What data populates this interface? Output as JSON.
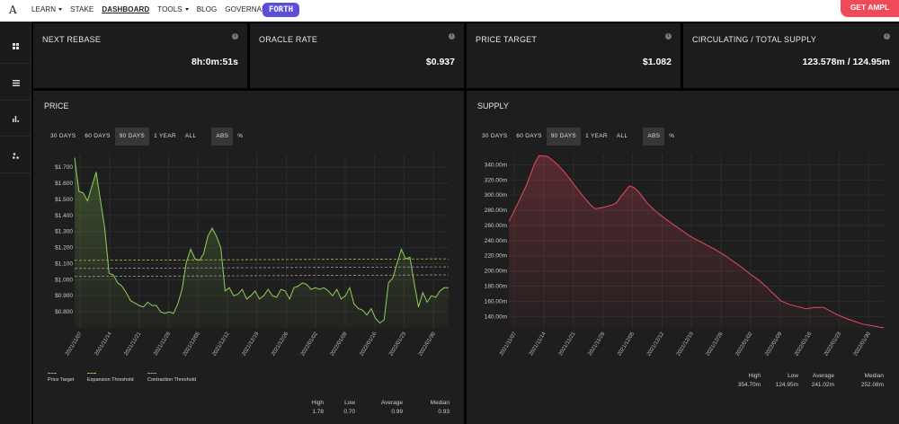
{
  "app": {
    "logo": "A",
    "nav": [
      {
        "label": "LEARN",
        "dropdown": true,
        "active": false
      },
      {
        "label": "STAKE",
        "dropdown": false,
        "active": false
      },
      {
        "label": "DASHBOARD",
        "dropdown": false,
        "active": true
      },
      {
        "label": "TOOLS",
        "dropdown": true,
        "active": false
      },
      {
        "label": "BLOG",
        "dropdown": false,
        "active": false
      },
      {
        "label": "GOVERNANCE",
        "dropdown": true,
        "active": false
      }
    ],
    "forth_label": "FORTH",
    "cta_label": "GET AMPL"
  },
  "sidebar": {
    "icons": [
      "grid-icon",
      "list-icon",
      "bar-chart-icon",
      "nodes-icon"
    ]
  },
  "cards": [
    {
      "label": "NEXT REBASE",
      "value": "8h:0m:51s"
    },
    {
      "label": "ORACLE RATE",
      "value": "$0.937"
    },
    {
      "label": "PRICE TARGET",
      "value": "$1.082"
    },
    {
      "label": "CIRCULATING / TOTAL SUPPLY",
      "value": "123.578m / 124.95m"
    }
  ],
  "info_glyph": "i",
  "price_panel": {
    "title": "PRICE",
    "range_tabs": [
      "30 DAYS",
      "60 DAYS",
      "90 DAYS",
      "1 YEAR",
      "ALL"
    ],
    "selected_range": "90 DAYS",
    "mode_tabs": [
      "ABS",
      "%"
    ],
    "selected_mode": "ABS",
    "legend": [
      "Price Target",
      "Expansion Threshold",
      "Contraction Threshold"
    ],
    "stats": [
      {
        "label": "High",
        "value": "1.78"
      },
      {
        "label": "Low",
        "value": "0.70"
      },
      {
        "label": "Average",
        "value": "0.99"
      },
      {
        "label": "Median",
        "value": "0.93"
      }
    ]
  },
  "supply_panel": {
    "title": "SUPPLY",
    "range_tabs": [
      "30 DAYS",
      "60 DAYS",
      "90 DAYS",
      "1 YEAR",
      "ALL"
    ],
    "selected_range": "90 DAYS",
    "mode_tabs": [
      "ABS",
      "%"
    ],
    "selected_mode": "ABS",
    "stats": [
      {
        "label": "High",
        "value": "354.70m"
      },
      {
        "label": "Low",
        "value": "124.95m"
      },
      {
        "label": "Average",
        "value": "241.02m"
      },
      {
        "label": "Median",
        "value": "252.08m"
      }
    ]
  },
  "colors": {
    "price_line": "#8fcf5a",
    "supply_line": "#e84a5f",
    "target_line": "#9a9a9a",
    "expansion_line": "#b9b44a",
    "contraction_line": "#9a9a9a"
  },
  "chart_data": [
    {
      "type": "area",
      "title": "PRICE",
      "x_tick_labels": [
        "2021/11/07",
        "2021/11/14",
        "2021/11/21",
        "2021/11/28",
        "2021/12/05",
        "2021/12/12",
        "2021/12/19",
        "2021/12/26",
        "2022/01/02",
        "2022/01/09",
        "2022/01/16",
        "2022/01/23",
        "2022/01/30"
      ],
      "y_tick_labels": [
        "$0.800",
        "$0.900",
        "$1.000",
        "$1.100",
        "$1.200",
        "$1.300",
        "$1.400",
        "$1.500",
        "$1.600",
        "$1.700"
      ],
      "ylim": [
        0.7,
        1.78
      ],
      "xlim": [
        0,
        87
      ],
      "grid": true,
      "series": [
        {
          "name": "Price",
          "values": [
            [
              0,
              1.76
            ],
            [
              1,
              1.55
            ],
            [
              2,
              1.54
            ],
            [
              3,
              1.49
            ],
            [
              5,
              1.67
            ],
            [
              7,
              1.32
            ],
            [
              8,
              1.04
            ],
            [
              9,
              1.03
            ],
            [
              10,
              0.98
            ],
            [
              11,
              0.96
            ],
            [
              12,
              0.92
            ],
            [
              13,
              0.87
            ],
            [
              15,
              0.84
            ],
            [
              16,
              0.83
            ],
            [
              17,
              0.86
            ],
            [
              18,
              0.84
            ],
            [
              19,
              0.84
            ],
            [
              20,
              0.8
            ],
            [
              21,
              0.79
            ],
            [
              22,
              0.8
            ],
            [
              23,
              0.79
            ],
            [
              24,
              0.85
            ],
            [
              25,
              0.94
            ],
            [
              26,
              1.11
            ],
            [
              27,
              1.19
            ],
            [
              28,
              1.13
            ],
            [
              29,
              1.12
            ],
            [
              30,
              1.16
            ],
            [
              31,
              1.27
            ],
            [
              32,
              1.32
            ],
            [
              33,
              1.27
            ],
            [
              34,
              1.2
            ],
            [
              35,
              0.93
            ],
            [
              36,
              0.95
            ],
            [
              37,
              0.9
            ],
            [
              38,
              0.91
            ],
            [
              39,
              0.94
            ],
            [
              40,
              0.88
            ],
            [
              41,
              0.9
            ],
            [
              42,
              0.93
            ],
            [
              43,
              0.88
            ],
            [
              44,
              0.9
            ],
            [
              45,
              0.94
            ],
            [
              46,
              0.9
            ],
            [
              47,
              0.89
            ],
            [
              48,
              0.94
            ],
            [
              49,
              0.93
            ],
            [
              50,
              0.88
            ],
            [
              51,
              0.95
            ],
            [
              52,
              0.96
            ],
            [
              53,
              0.98
            ],
            [
              54,
              0.97
            ],
            [
              55,
              0.94
            ],
            [
              56,
              0.95
            ],
            [
              57,
              0.94
            ],
            [
              58,
              0.95
            ],
            [
              59,
              0.93
            ],
            [
              60,
              0.9
            ],
            [
              61,
              0.94
            ],
            [
              62,
              0.88
            ],
            [
              63,
              0.9
            ],
            [
              64,
              0.95
            ],
            [
              65,
              0.85
            ],
            [
              66,
              0.82
            ],
            [
              67,
              0.81
            ],
            [
              68,
              0.78
            ],
            [
              69,
              0.82
            ],
            [
              70,
              0.76
            ],
            [
              71,
              0.73
            ],
            [
              72,
              0.75
            ],
            [
              73,
              0.98
            ],
            [
              74,
              1.01
            ],
            [
              75,
              1.1
            ],
            [
              76,
              1.19
            ],
            [
              77,
              1.13
            ],
            [
              78,
              1.14
            ],
            [
              79,
              0.98
            ],
            [
              80,
              0.83
            ],
            [
              81,
              0.92
            ],
            [
              82,
              0.86
            ],
            [
              83,
              0.9
            ],
            [
              84,
              0.89
            ],
            [
              85,
              0.93
            ],
            [
              86,
              0.95
            ],
            [
              87,
              0.95
            ]
          ]
        },
        {
          "name": "Price Target",
          "values": [
            [
              0,
              1.07
            ],
            [
              87,
              1.08
            ]
          ]
        },
        {
          "name": "Expansion Threshold",
          "values": [
            [
              0,
              1.12
            ],
            [
              87,
              1.13
            ]
          ]
        },
        {
          "name": "Contraction Threshold",
          "values": [
            [
              0,
              1.02
            ],
            [
              87,
              1.03
            ]
          ]
        }
      ],
      "legend_position": "bottom-left"
    },
    {
      "type": "area",
      "title": "SUPPLY",
      "x_tick_labels": [
        "2021/11/07",
        "2021/11/14",
        "2021/11/21",
        "2021/11/28",
        "2021/12/05",
        "2021/12/12",
        "2021/12/19",
        "2021/12/26",
        "2022/01/02",
        "2022/01/09",
        "2022/01/16",
        "2022/01/23",
        "2022/01/30"
      ],
      "y_tick_labels": [
        "140.00m",
        "160.00m",
        "180.00m",
        "200.00m",
        "220.00m",
        "240.00m",
        "260.00m",
        "280.00m",
        "300.00m",
        "320.00m",
        "340.00m"
      ],
      "ylim": [
        124.95,
        354.7
      ],
      "xlim": [
        0,
        87
      ],
      "grid": true,
      "series": [
        {
          "name": "Supply",
          "values": [
            [
              0,
              265
            ],
            [
              2,
              288
            ],
            [
              4,
              312
            ],
            [
              6,
              342
            ],
            [
              7,
              352
            ],
            [
              9,
              351
            ],
            [
              11,
              342
            ],
            [
              13,
              330
            ],
            [
              15,
              315
            ],
            [
              17,
              300
            ],
            [
              19,
              287
            ],
            [
              20,
              282
            ],
            [
              22,
              284
            ],
            [
              24,
              287
            ],
            [
              25,
              290
            ],
            [
              26,
              298
            ],
            [
              27,
              305
            ],
            [
              28,
              312
            ],
            [
              29,
              310
            ],
            [
              30,
              305
            ],
            [
              31,
              298
            ],
            [
              32,
              290
            ],
            [
              34,
              279
            ],
            [
              36,
              270
            ],
            [
              38,
              262
            ],
            [
              40,
              254
            ],
            [
              42,
              246
            ],
            [
              44,
              240
            ],
            [
              46,
              234
            ],
            [
              48,
              228
            ],
            [
              50,
              221
            ],
            [
              52,
              213
            ],
            [
              54,
              205
            ],
            [
              56,
              196
            ],
            [
              58,
              188
            ],
            [
              60,
              178
            ],
            [
              61,
              172
            ],
            [
              62,
              167
            ],
            [
              63,
              161
            ],
            [
              65,
              156
            ],
            [
              67,
              153
            ],
            [
              69,
              150
            ],
            [
              71,
              152
            ],
            [
              73,
              152
            ],
            [
              74,
              149
            ],
            [
              76,
              143
            ],
            [
              78,
              138
            ],
            [
              80,
              134
            ],
            [
              82,
              130
            ],
            [
              85,
              127
            ],
            [
              87,
              125
            ]
          ]
        }
      ]
    }
  ]
}
